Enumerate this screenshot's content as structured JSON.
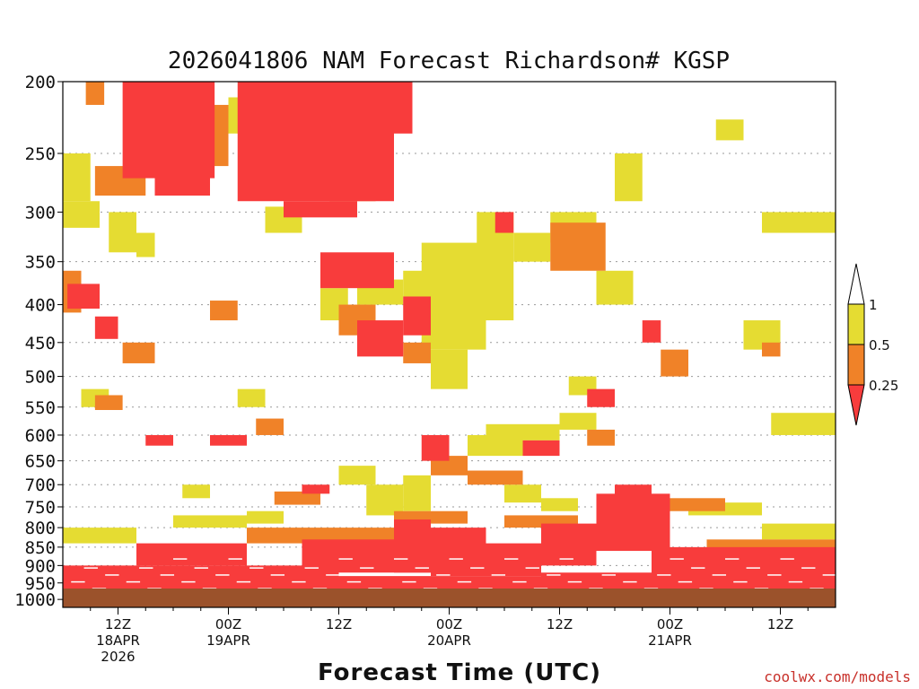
{
  "chart_data": {
    "type": "heatmap",
    "title": "2026041806 NAM Forecast Richardson# KGSP",
    "xlabel": "Forecast Time (UTC)",
    "ylabel": "",
    "credit": "coolwx.com/models",
    "x_ticks": [
      {
        "hour": 6,
        "lines": [
          "12Z",
          "18APR",
          "2026"
        ]
      },
      {
        "hour": 18,
        "lines": [
          "00Z",
          "19APR"
        ]
      },
      {
        "hour": 30,
        "lines": [
          "12Z"
        ]
      },
      {
        "hour": 42,
        "lines": [
          "00Z",
          "20APR"
        ]
      },
      {
        "hour": 54,
        "lines": [
          "12Z"
        ]
      },
      {
        "hour": 66,
        "lines": [
          "00Z",
          "21APR"
        ]
      },
      {
        "hour": 78,
        "lines": [
          "12Z"
        ]
      }
    ],
    "x_range_hours": [
      0,
      84
    ],
    "y_ticks": [
      "200",
      "250",
      "300",
      "350",
      "400",
      "450",
      "500",
      "550",
      "600",
      "650",
      "700",
      "750",
      "800",
      "850",
      "900",
      "950",
      "1000"
    ],
    "y_range_mb": [
      200,
      1025
    ],
    "y_scale": "log-pressure",
    "legend": {
      "position": "right",
      "levels": [
        "1",
        "0.5",
        "0.25"
      ],
      "colors": {
        "yellow": "#e5dc32",
        "orange": "#f08228",
        "red": "#f83c3c"
      }
    },
    "ground_color": "#9b522b",
    "grid": "dotted at pressure levels",
    "fields": {
      "red": [
        {
          "t": [
            6.5,
            16.5
          ],
          "p": [
            200,
            270
          ]
        },
        {
          "t": [
            10,
            16
          ],
          "p": [
            260,
            285
          ]
        },
        {
          "t": [
            19,
            36
          ],
          "p": [
            200,
            290
          ]
        },
        {
          "t": [
            24,
            32
          ],
          "p": [
            290,
            305
          ]
        },
        {
          "t": [
            34,
            38
          ],
          "p": [
            200,
            235
          ]
        },
        {
          "t": [
            28,
            36
          ],
          "p": [
            340,
            380
          ]
        },
        {
          "t": [
            0.5,
            4
          ],
          "p": [
            375,
            405
          ]
        },
        {
          "t": [
            3.5,
            6
          ],
          "p": [
            415,
            445
          ]
        },
        {
          "t": [
            16,
            20
          ],
          "p": [
            600,
            620
          ]
        },
        {
          "t": [
            9,
            12
          ],
          "p": [
            600,
            620
          ]
        },
        {
          "t": [
            26,
            29
          ],
          "p": [
            700,
            720
          ]
        },
        {
          "t": [
            32,
            37
          ],
          "p": [
            420,
            470
          ]
        },
        {
          "t": [
            37,
            40
          ],
          "p": [
            390,
            440
          ]
        },
        {
          "t": [
            39,
            42
          ],
          "p": [
            600,
            650
          ]
        },
        {
          "t": [
            47,
            49
          ],
          "p": [
            300,
            320
          ]
        },
        {
          "t": [
            50,
            54
          ],
          "p": [
            610,
            640
          ]
        },
        {
          "t": [
            57,
            60
          ],
          "p": [
            520,
            550
          ]
        },
        {
          "t": [
            63,
            65
          ],
          "p": [
            420,
            450
          ]
        },
        {
          "t": [
            36,
            40
          ],
          "p": [
            780,
            920
          ]
        },
        {
          "t": [
            40,
            46
          ],
          "p": [
            800,
            930
          ]
        },
        {
          "t": [
            46,
            52
          ],
          "p": [
            840,
            930
          ]
        },
        {
          "t": [
            52,
            58
          ],
          "p": [
            790,
            900
          ]
        },
        {
          "t": [
            58,
            66
          ],
          "p": [
            720,
            860
          ]
        },
        {
          "t": [
            60,
            64
          ],
          "p": [
            700,
            730
          ]
        },
        {
          "t": [
            64,
            84
          ],
          "p": [
            850,
            960
          ]
        },
        {
          "t": [
            0,
            30
          ],
          "p": [
            900,
            975
          ]
        },
        {
          "t": [
            8,
            20
          ],
          "p": [
            840,
            900
          ]
        },
        {
          "t": [
            26,
            40
          ],
          "p": [
            830,
            920
          ]
        },
        {
          "t": [
            30,
            52
          ],
          "p": [
            930,
            990
          ]
        },
        {
          "t": [
            52,
            84
          ],
          "p": [
            920,
            990
          ]
        }
      ],
      "orange": [
        {
          "t": [
            2.5,
            4.5
          ],
          "p": [
            200,
            215
          ]
        },
        {
          "t": [
            3.5,
            9
          ],
          "p": [
            260,
            285
          ]
        },
        {
          "t": [
            13,
            18
          ],
          "p": [
            215,
            260
          ]
        },
        {
          "t": [
            21,
            27
          ],
          "p": [
            225,
            250
          ]
        },
        {
          "t": [
            29,
            34
          ],
          "p": [
            265,
            290
          ]
        },
        {
          "t": [
            0,
            2
          ],
          "p": [
            360,
            410
          ]
        },
        {
          "t": [
            6.5,
            10
          ],
          "p": [
            450,
            480
          ]
        },
        {
          "t": [
            3.5,
            6.5
          ],
          "p": [
            530,
            555
          ]
        },
        {
          "t": [
            16,
            19
          ],
          "p": [
            395,
            420
          ]
        },
        {
          "t": [
            21,
            24
          ],
          "p": [
            570,
            600
          ]
        },
        {
          "t": [
            23,
            28
          ],
          "p": [
            715,
            745
          ]
        },
        {
          "t": [
            30,
            34
          ],
          "p": [
            400,
            440
          ]
        },
        {
          "t": [
            37,
            40
          ],
          "p": [
            450,
            480
          ]
        },
        {
          "t": [
            40,
            44
          ],
          "p": [
            640,
            680
          ]
        },
        {
          "t": [
            44,
            50
          ],
          "p": [
            670,
            700
          ]
        },
        {
          "t": [
            53,
            59
          ],
          "p": [
            310,
            360
          ]
        },
        {
          "t": [
            65,
            68
          ],
          "p": [
            460,
            500
          ]
        },
        {
          "t": [
            76,
            78
          ],
          "p": [
            450,
            470
          ]
        },
        {
          "t": [
            57,
            60
          ],
          "p": [
            590,
            620
          ]
        },
        {
          "t": [
            66,
            72
          ],
          "p": [
            730,
            760
          ]
        },
        {
          "t": [
            20,
            36
          ],
          "p": [
            800,
            840
          ]
        },
        {
          "t": [
            48,
            56
          ],
          "p": [
            770,
            800
          ]
        },
        {
          "t": [
            70,
            84
          ],
          "p": [
            830,
            860
          ]
        },
        {
          "t": [
            0,
            12
          ],
          "p": [
            950,
            980
          ]
        },
        {
          "t": [
            36,
            44
          ],
          "p": [
            760,
            790
          ]
        }
      ],
      "yellow": [
        {
          "t": [
            0,
            3
          ],
          "p": [
            250,
            290
          ]
        },
        {
          "t": [
            0,
            4
          ],
          "p": [
            290,
            315
          ]
        },
        {
          "t": [
            5,
            8
          ],
          "p": [
            300,
            340
          ]
        },
        {
          "t": [
            8,
            10
          ],
          "p": [
            320,
            345
          ]
        },
        {
          "t": [
            18,
            21
          ],
          "p": [
            210,
            235
          ]
        },
        {
          "t": [
            22,
            26
          ],
          "p": [
            295,
            320
          ]
        },
        {
          "t": [
            28,
            31
          ],
          "p": [
            380,
            420
          ]
        },
        {
          "t": [
            32,
            37
          ],
          "p": [
            370,
            400
          ]
        },
        {
          "t": [
            37,
            40
          ],
          "p": [
            360,
            390
          ]
        },
        {
          "t": [
            39,
            46
          ],
          "p": [
            330,
            460
          ]
        },
        {
          "t": [
            40,
            44
          ],
          "p": [
            460,
            520
          ]
        },
        {
          "t": [
            45,
            49
          ],
          "p": [
            300,
            420
          ]
        },
        {
          "t": [
            49,
            53
          ],
          "p": [
            320,
            350
          ]
        },
        {
          "t": [
            53,
            58
          ],
          "p": [
            300,
            330
          ]
        },
        {
          "t": [
            58,
            62
          ],
          "p": [
            360,
            400
          ]
        },
        {
          "t": [
            60,
            63
          ],
          "p": [
            250,
            290
          ]
        },
        {
          "t": [
            71,
            74
          ],
          "p": [
            225,
            240
          ]
        },
        {
          "t": [
            76,
            84
          ],
          "p": [
            300,
            320
          ]
        },
        {
          "t": [
            77,
            84
          ],
          "p": [
            560,
            600
          ]
        },
        {
          "t": [
            74,
            78
          ],
          "p": [
            420,
            460
          ]
        },
        {
          "t": [
            2,
            5
          ],
          "p": [
            520,
            550
          ]
        },
        {
          "t": [
            19,
            22
          ],
          "p": [
            520,
            550
          ]
        },
        {
          "t": [
            44,
            50
          ],
          "p": [
            600,
            640
          ]
        },
        {
          "t": [
            46,
            54
          ],
          "p": [
            580,
            610
          ]
        },
        {
          "t": [
            54,
            58
          ],
          "p": [
            560,
            590
          ]
        },
        {
          "t": [
            55,
            58
          ],
          "p": [
            500,
            530
          ]
        },
        {
          "t": [
            30,
            34
          ],
          "p": [
            660,
            700
          ]
        },
        {
          "t": [
            33,
            37
          ],
          "p": [
            700,
            770
          ]
        },
        {
          "t": [
            37,
            40
          ],
          "p": [
            680,
            760
          ]
        },
        {
          "t": [
            48,
            52
          ],
          "p": [
            700,
            740
          ]
        },
        {
          "t": [
            52,
            56
          ],
          "p": [
            730,
            760
          ]
        },
        {
          "t": [
            60,
            66
          ],
          "p": [
            780,
            810
          ]
        },
        {
          "t": [
            68,
            76
          ],
          "p": [
            740,
            770
          ]
        },
        {
          "t": [
            76,
            84
          ],
          "p": [
            790,
            830
          ]
        },
        {
          "t": [
            12,
            20
          ],
          "p": [
            770,
            800
          ]
        },
        {
          "t": [
            0,
            8
          ],
          "p": [
            800,
            840
          ]
        },
        {
          "t": [
            20,
            24
          ],
          "p": [
            760,
            790
          ]
        },
        {
          "t": [
            13,
            16
          ],
          "p": [
            700,
            730
          ]
        }
      ]
    }
  }
}
